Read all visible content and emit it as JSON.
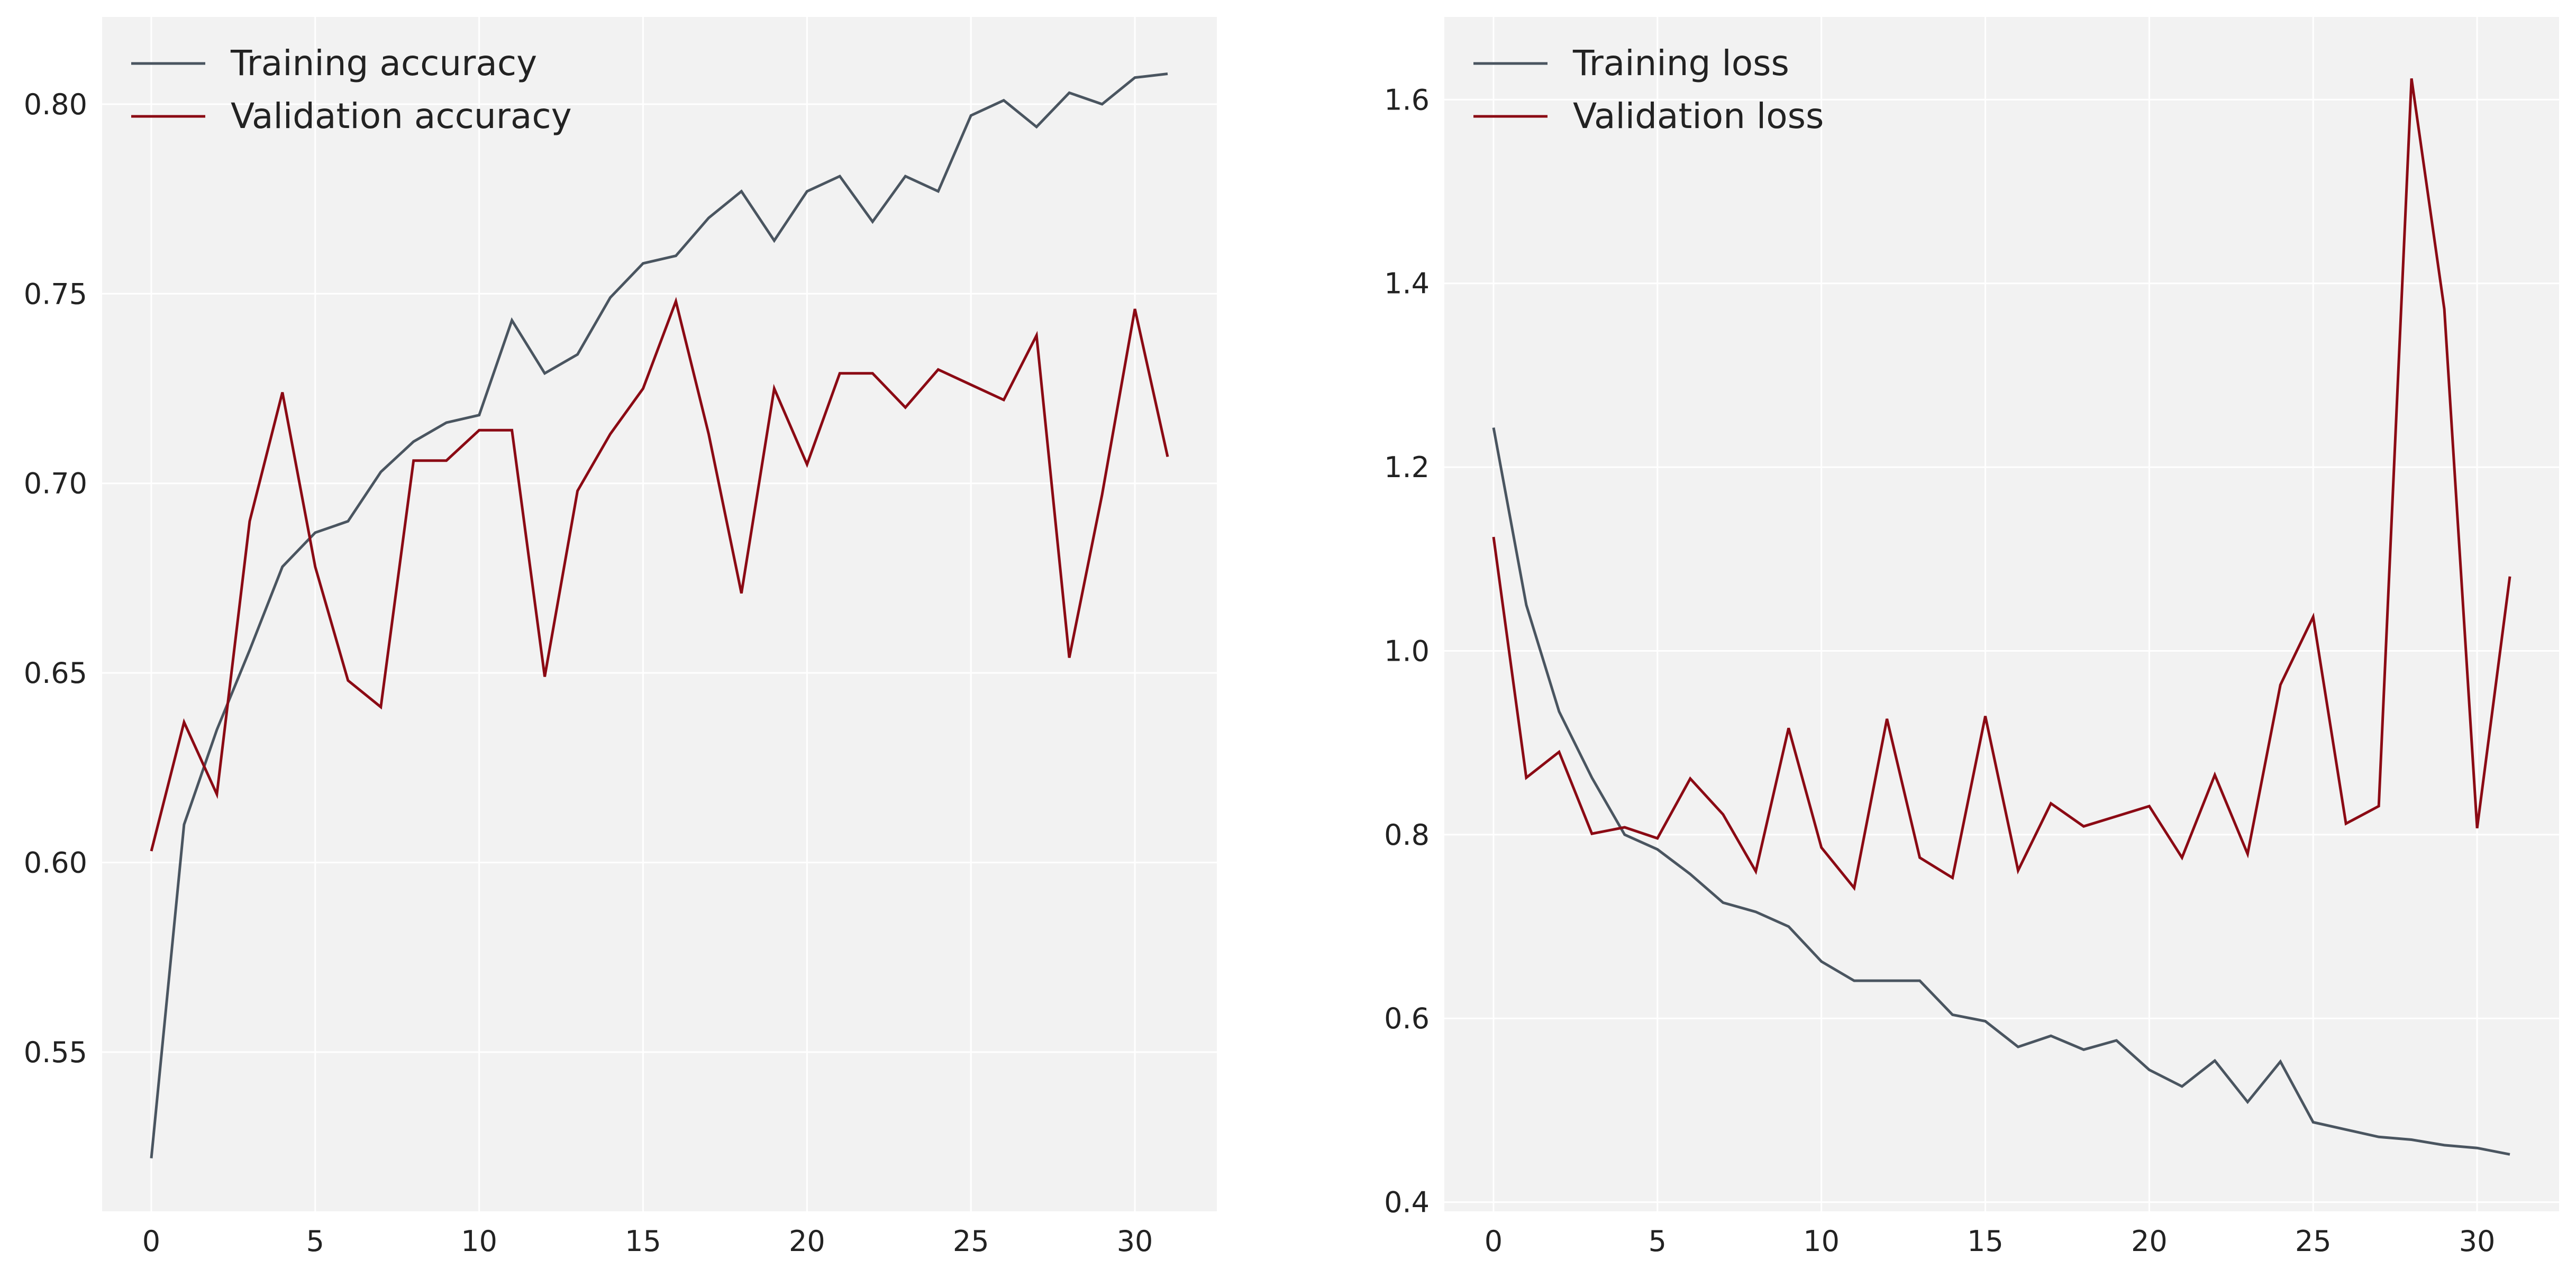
{
  "chart_data": [
    {
      "type": "line",
      "title": "",
      "xlabel": "",
      "ylabel": "",
      "xlim": [
        -1.5,
        32.5
      ],
      "ylim": [
        0.508,
        0.823
      ],
      "x_ticks": [
        0,
        5,
        10,
        15,
        20,
        25,
        30
      ],
      "y_ticks": [
        0.55,
        0.6,
        0.65,
        0.7,
        0.75,
        0.8
      ],
      "grid": true,
      "legend_position": "top-left",
      "x": [
        0,
        1,
        2,
        3,
        4,
        5,
        6,
        7,
        8,
        9,
        10,
        11,
        12,
        13,
        14,
        15,
        16,
        17,
        18,
        19,
        20,
        21,
        22,
        23,
        24,
        25,
        26,
        27,
        28,
        29,
        30,
        31
      ],
      "series": [
        {
          "name": "Training accuracy",
          "color": "#4a5560",
          "values": [
            0.522,
            0.61,
            0.635,
            0.656,
            0.678,
            0.687,
            0.69,
            0.703,
            0.711,
            0.716,
            0.718,
            0.743,
            0.729,
            0.734,
            0.749,
            0.758,
            0.76,
            0.77,
            0.777,
            0.764,
            0.777,
            0.781,
            0.769,
            0.781,
            0.777,
            0.797,
            0.801,
            0.794,
            0.803,
            0.8,
            0.807,
            0.808
          ]
        },
        {
          "name": "Validation accuracy",
          "color": "#8b0a14",
          "values": [
            0.603,
            0.637,
            0.618,
            0.69,
            0.724,
            0.678,
            0.648,
            0.641,
            0.706,
            0.706,
            0.714,
            0.714,
            0.649,
            0.698,
            0.713,
            0.725,
            0.748,
            0.713,
            0.671,
            0.725,
            0.705,
            0.729,
            0.729,
            0.72,
            0.73,
            0.726,
            0.722,
            0.739,
            0.654,
            0.697,
            0.746,
            0.707
          ]
        }
      ]
    },
    {
      "type": "line",
      "title": "",
      "xlabel": "",
      "ylabel": "",
      "xlim": [
        -1.5,
        32.5
      ],
      "ylim": [
        0.39,
        1.69
      ],
      "x_ticks": [
        0,
        5,
        10,
        15,
        20,
        25,
        30
      ],
      "y_ticks": [
        0.4,
        0.6,
        0.8,
        1.0,
        1.2,
        1.4,
        1.6
      ],
      "grid": true,
      "legend_position": "top-left",
      "x": [
        0,
        1,
        2,
        3,
        4,
        5,
        6,
        7,
        8,
        9,
        10,
        11,
        12,
        13,
        14,
        15,
        16,
        17,
        18,
        19,
        20,
        21,
        22,
        23,
        24,
        25,
        26,
        27,
        28,
        29,
        30,
        31
      ],
      "series": [
        {
          "name": "Training loss",
          "color": "#4a5560",
          "values": [
            1.243,
            1.05,
            0.934,
            0.862,
            0.8,
            0.784,
            0.757,
            0.726,
            0.716,
            0.7,
            0.662,
            0.641,
            0.641,
            0.641,
            0.604,
            0.597,
            0.569,
            0.581,
            0.566,
            0.576,
            0.544,
            0.526,
            0.554,
            0.509,
            0.553,
            0.487,
            0.479,
            0.471,
            0.468,
            0.462,
            0.459,
            0.452
          ]
        },
        {
          "name": "Validation loss",
          "color": "#8b0a14",
          "values": [
            1.124,
            0.862,
            0.89,
            0.801,
            0.808,
            0.796,
            0.861,
            0.822,
            0.76,
            0.916,
            0.786,
            0.742,
            0.926,
            0.775,
            0.753,
            0.929,
            0.761,
            0.834,
            0.809,
            0.82,
            0.831,
            0.775,
            0.865,
            0.779,
            0.963,
            1.037,
            0.812,
            0.831,
            1.623,
            1.372,
            0.807,
            1.081
          ]
        }
      ]
    }
  ]
}
